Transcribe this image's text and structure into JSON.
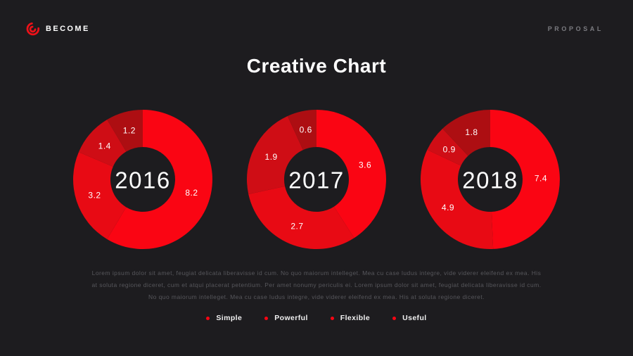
{
  "header": {
    "brand": "BECOME",
    "right_label": "PROPOSAL"
  },
  "title": "Creative Chart",
  "colors": {
    "background": "#1d1c1f",
    "accent_red": "#fa0513",
    "segment_palette": [
      "#fa0513",
      "#e80a14",
      "#cf0d15",
      "#ad0e12"
    ],
    "muted_text": "#57575c",
    "header_right_text": "#7b7b80"
  },
  "chart_data": [
    {
      "type": "pie",
      "variant": "donut",
      "center_label": "2016",
      "values": [
        8.2,
        3.2,
        1.4,
        1.2
      ],
      "labels": [
        "8.2",
        "3.2",
        "1.4",
        "1.2"
      ],
      "colors": [
        "#fa0513",
        "#e80a14",
        "#cf0d15",
        "#ad0e12"
      ],
      "start_angle": 0,
      "direction": "clockwise",
      "legend_labels": [
        "Simple",
        "Powerful",
        "Flexible",
        "Useful"
      ]
    },
    {
      "type": "pie",
      "variant": "donut",
      "center_label": "2017",
      "values": [
        3.6,
        2.7,
        1.9,
        0.6
      ],
      "labels": [
        "3.6",
        "2.7",
        "1.9",
        "0.6"
      ],
      "colors": [
        "#fa0513",
        "#e80a14",
        "#cf0d15",
        "#ad0e12"
      ],
      "start_angle": 0,
      "direction": "clockwise",
      "legend_labels": [
        "Simple",
        "Powerful",
        "Flexible",
        "Useful"
      ]
    },
    {
      "type": "pie",
      "variant": "donut",
      "center_label": "2018",
      "values": [
        7.4,
        4.9,
        0.9,
        1.8
      ],
      "labels": [
        "7.4",
        "4.9",
        "0.9",
        "1.8"
      ],
      "colors": [
        "#fa0513",
        "#e80a14",
        "#cf0d15",
        "#ad0e12"
      ],
      "start_angle": 0,
      "direction": "clockwise",
      "legend_labels": [
        "Simple",
        "Powerful",
        "Flexible",
        "Useful"
      ]
    }
  ],
  "paragraph": "Lorem ipsum dolor sit amet, feugiat delicata liberavisse id cum. No quo maiorum intelleget. Mea cu case ludus integre, vide viderer eleifend ex mea. His at soluta regione diceret, cum et atqui placerat petentium. Per amet nonumy periculis ei. Lorem ipsum dolor sit amet, feugiat delicata liberavisse id cum. No quo maiorum intelleget. Mea cu case ludus integre, vide viderer eleifend ex mea. His at soluta regione diceret.",
  "legend": {
    "dot_color": "#fa0513",
    "items": [
      {
        "label": "Simple"
      },
      {
        "label": "Powerful"
      },
      {
        "label": "Flexible"
      },
      {
        "label": "Useful"
      }
    ]
  }
}
